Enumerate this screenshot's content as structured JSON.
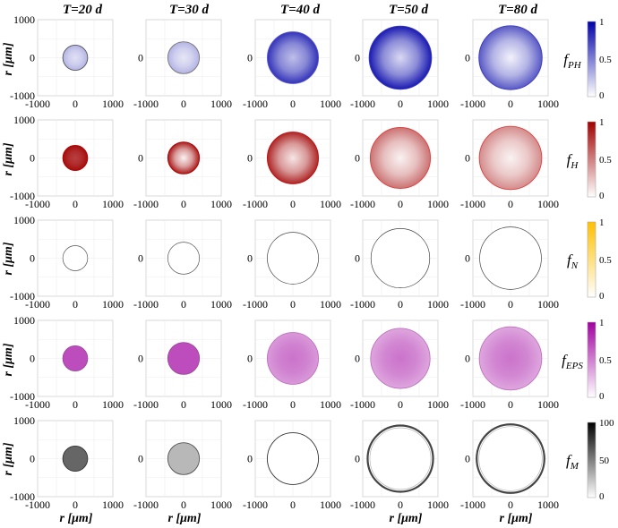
{
  "figure": {
    "column_titles": [
      "T=20 d",
      "T=30 d",
      "T=40 d",
      "T=50 d",
      "T=80 d"
    ],
    "ylabel": "r [μm]",
    "xlabel": "r [μm]"
  },
  "chart_data": {
    "type": "heatmap",
    "description_axes": {
      "xlim": [
        -1000,
        1000
      ],
      "ylim": [
        -1000,
        1000
      ],
      "x_ticks": [
        -1000,
        0,
        1000
      ],
      "y_ticks": [
        -1000,
        0,
        1000
      ],
      "grid": true
    },
    "times_days": [
      20,
      30,
      40,
      50,
      80
    ],
    "rows": [
      {
        "variable": "fPH",
        "label_main": "f",
        "label_sub": "PH",
        "colorbar": {
          "min": 0,
          "max": 1,
          "ticks": [
            "1",
            "0.5",
            "0"
          ],
          "color": "#0000a8"
        },
        "tumor_radius": [
          330,
          420,
          680,
          830,
          840
        ],
        "center_intensity": [
          0.12,
          0.1,
          0.25,
          0.15,
          0.05
        ],
        "rim_intensity": [
          0.3,
          0.3,
          0.8,
          0.9,
          0.65
        ],
        "rim_stroke": [
          "#555555",
          "#777777",
          "#5a5ad0",
          "#3b3bc0",
          "#3b3bc0"
        ]
      },
      {
        "variable": "fH",
        "label_main": "f",
        "label_sub": "H",
        "colorbar": {
          "min": 0,
          "max": 1,
          "ticks": [
            "1",
            "0.5",
            "0"
          ],
          "color": "#a00000"
        },
        "tumor_radius": [
          330,
          420,
          680,
          800,
          830
        ],
        "center_intensity": [
          0.75,
          0.05,
          0.1,
          0.05,
          0.05
        ],
        "rim_intensity": [
          0.95,
          0.9,
          0.85,
          0.55,
          0.45
        ],
        "rim_stroke": [
          "#b00000",
          "#b00000",
          "#c01010",
          "#e04040",
          "#e04040"
        ]
      },
      {
        "variable": "fN",
        "label_main": "f",
        "label_sub": "N",
        "colorbar": {
          "min": 0,
          "max": 1,
          "ticks": [
            "1",
            "0.5",
            "0"
          ],
          "color": "#ffc000"
        },
        "tumor_radius": [
          330,
          420,
          680,
          780,
          820
        ],
        "center_intensity": [
          0,
          0,
          0,
          0,
          0
        ],
        "rim_intensity": [
          0,
          0,
          0,
          0,
          0
        ],
        "rim_stroke": [
          "#555555",
          "#555555",
          "#444444",
          "#444444",
          "#444444"
        ]
      },
      {
        "variable": "fEPS",
        "label_main": "f",
        "label_sub": "EPS",
        "colorbar": {
          "min": 0,
          "max": 1,
          "ticks": [
            "1",
            "0.5",
            "0"
          ],
          "color": "#a000a0"
        },
        "tumor_radius": [
          330,
          420,
          680,
          790,
          830
        ],
        "center_intensity": [
          0.7,
          0.7,
          0.55,
          0.55,
          0.55
        ],
        "rim_intensity": [
          0.7,
          0.7,
          0.4,
          0.35,
          0.35
        ],
        "rim_stroke": [
          "#9a4a9a",
          "#9a4a9a",
          "#c070c0",
          "#c070c0",
          "#c070c0"
        ]
      },
      {
        "variable": "fM",
        "label_main": "f",
        "label_sub": "M",
        "colorbar": {
          "min": 0,
          "max": 100,
          "ticks": [
            "100",
            "50",
            "0"
          ],
          "color": "#000000"
        },
        "tumor_radius": [
          330,
          420,
          680,
          870,
          900
        ],
        "center_intensity": [
          0.6,
          0.28,
          0,
          0,
          0
        ],
        "rim_intensity": [
          0.6,
          0.28,
          0,
          0,
          0
        ],
        "rim_stroke": [
          "#333333",
          "#555555",
          "#333333",
          "#444444",
          "#444444"
        ]
      }
    ]
  }
}
